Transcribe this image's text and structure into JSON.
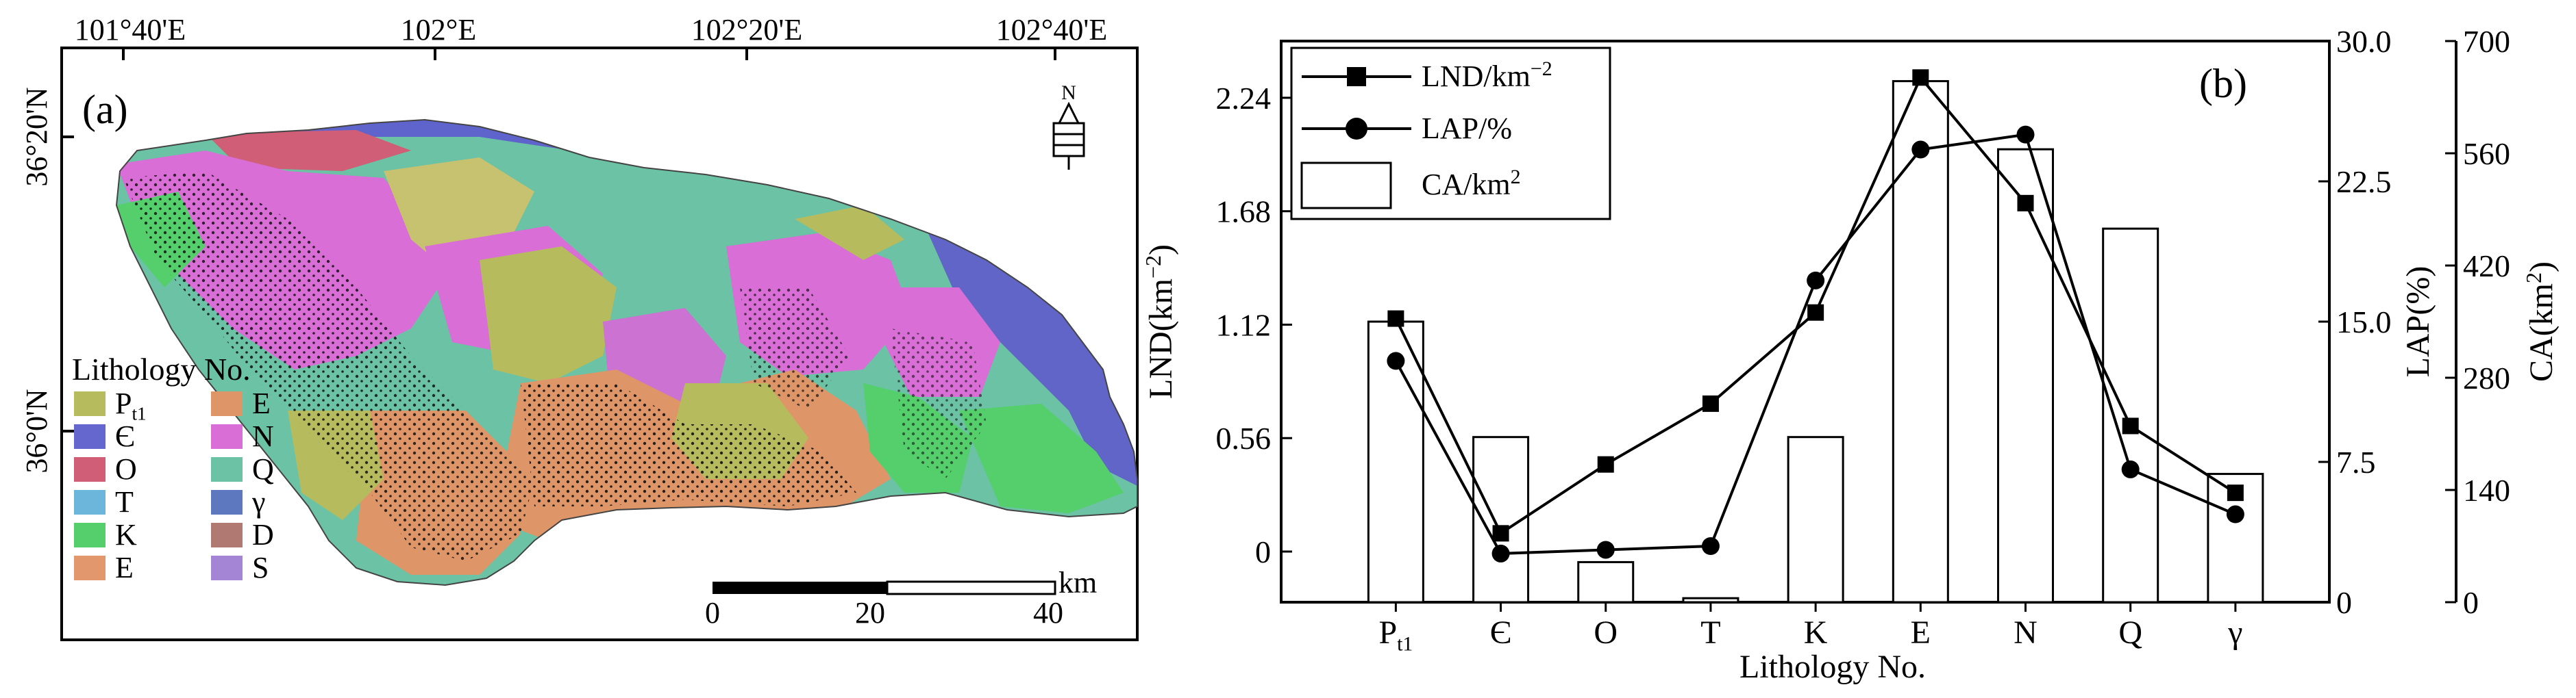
{
  "panel_a": {
    "label": "(a)",
    "lon_ticks": [
      "101°40'E",
      "102°E",
      "102°20'E",
      "102°40'E"
    ],
    "lat_ticks": [
      "36°20'N",
      "36°0'N"
    ],
    "legend_title": "Lithology No.",
    "legend_items": [
      {
        "label": "Pt1",
        "main": "P",
        "sub": "t1",
        "color": "#b6bc5e"
      },
      {
        "label": "E",
        "main": "E",
        "sub": "",
        "color": "#de9668"
      },
      {
        "label": "Є",
        "main": "Є",
        "sub": "",
        "color": "#6567cf"
      },
      {
        "label": "N",
        "main": "N",
        "sub": "",
        "color": "#d86ed6"
      },
      {
        "label": "O",
        "main": "O",
        "sub": "",
        "color": "#cf5e76"
      },
      {
        "label": "Q",
        "main": "Q",
        "sub": "",
        "color": "#6bc2a4"
      },
      {
        "label": "T",
        "main": "T",
        "sub": "",
        "color": "#6cb6dc"
      },
      {
        "label": "γ",
        "main": "γ",
        "sub": "",
        "color": "#5e78c0"
      },
      {
        "label": "K",
        "main": "K",
        "sub": "",
        "color": "#54cf6c"
      },
      {
        "label": "D",
        "main": "D",
        "sub": "",
        "color": "#b07a72"
      },
      {
        "label": "E",
        "main": "E",
        "sub": "",
        "color": "#e2986c"
      },
      {
        "label": "S",
        "main": "S",
        "sub": "",
        "color": "#a484d4"
      }
    ],
    "scalebar": {
      "unit": "km",
      "ticks": [
        "0",
        "20",
        "40"
      ]
    },
    "north_label": "N"
  },
  "chart_data": {
    "type": "bar",
    "panel_label": "(b)",
    "categories": [
      "Pt1",
      "Є",
      "O",
      "T",
      "K",
      "E",
      "N",
      "Q",
      "γ"
    ],
    "category_display": [
      {
        "main": "P",
        "sub": "t1"
      },
      {
        "main": "Є",
        "sub": ""
      },
      {
        "main": "O",
        "sub": ""
      },
      {
        "main": "T",
        "sub": ""
      },
      {
        "main": "K",
        "sub": ""
      },
      {
        "main": "E",
        "sub": ""
      },
      {
        "main": "N",
        "sub": ""
      },
      {
        "main": "Q",
        "sub": ""
      },
      {
        "main": "γ",
        "sub": ""
      }
    ],
    "xlabel": "Lithology No.",
    "series": [
      {
        "name": "CA/km2",
        "legend_main": "CA/km",
        "legend_sup": "2",
        "kind": "bar",
        "axis": "right2",
        "values": [
          350,
          206,
          50,
          5,
          206,
          650,
          565,
          466,
          160
        ]
      },
      {
        "name": "LND/km-2",
        "legend_main": "LND/km",
        "legend_sup": "−2",
        "kind": "line",
        "marker": "square",
        "axis": "left",
        "values": [
          1.15,
          0.09,
          0.43,
          0.73,
          1.18,
          2.34,
          1.72,
          0.62,
          0.29
        ]
      },
      {
        "name": "LAP/%",
        "legend_main": "LAP/%",
        "legend_sup": "",
        "kind": "line",
        "marker": "circle",
        "axis": "right1",
        "values": [
          12.9,
          2.6,
          2.8,
          3.0,
          17.2,
          24.2,
          25.0,
          7.1,
          4.7
        ]
      }
    ],
    "axes": {
      "left": {
        "label": "LND(km−2)",
        "label_main": "LND(km",
        "label_sup": "−2",
        "label_tail": ")",
        "ylim": [
          -0.25,
          2.52
        ],
        "ticks": [
          "0",
          "0.56",
          "1.12",
          "1.68",
          "2.24"
        ],
        "tick_values": [
          0,
          0.56,
          1.12,
          1.68,
          2.24
        ]
      },
      "right1": {
        "label": "LAP(%)",
        "ylim": [
          0,
          30
        ],
        "ticks": [
          "0",
          "7.5",
          "15.0",
          "22.5",
          "30.0"
        ],
        "tick_values": [
          0,
          7.5,
          15,
          22.5,
          30
        ]
      },
      "right2": {
        "label": "CA(km2)",
        "label_main": "CA(km",
        "label_sup": "2",
        "label_tail": ")",
        "ylim": [
          0,
          700
        ],
        "ticks": [
          "0",
          "140",
          "280",
          "420",
          "560",
          "700"
        ],
        "tick_values": [
          0,
          140,
          280,
          420,
          560,
          700
        ]
      }
    },
    "legend_placement": "top-left",
    "grid": false
  }
}
